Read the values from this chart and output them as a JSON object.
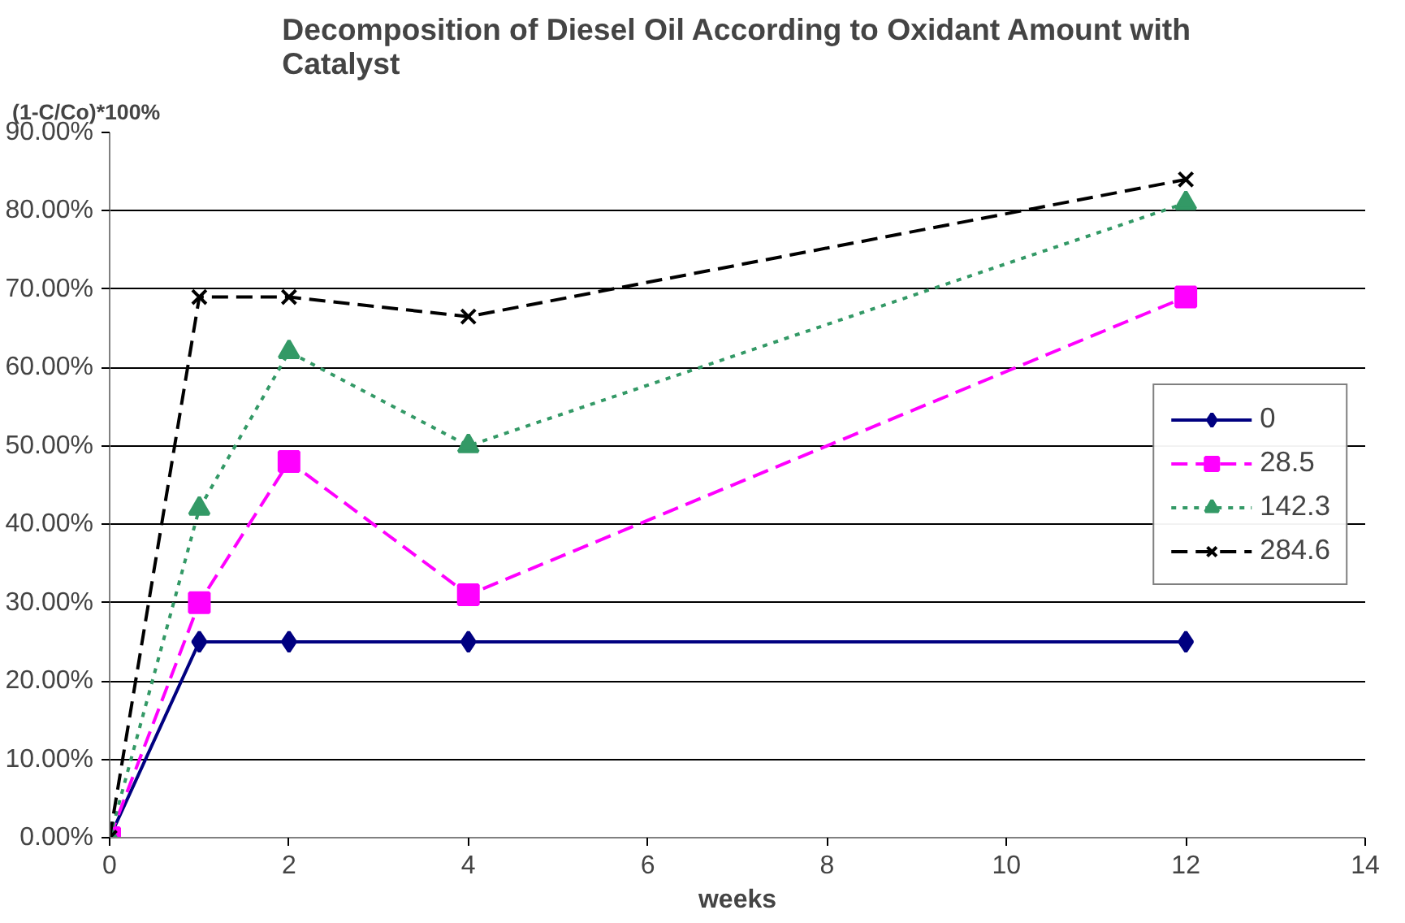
{
  "chart_data": {
    "type": "line",
    "title": "Decomposition of Diesel Oil According to Oxidant Amount with Catalyst",
    "xlabel": "weeks",
    "ylabel": "(1-C/Co)*100%",
    "x": [
      0,
      1,
      2,
      4,
      12
    ],
    "series": [
      {
        "name": "0",
        "color": "#000080",
        "values": [
          0,
          25,
          25,
          25,
          25
        ],
        "marker": "diamond",
        "line_style": "solid"
      },
      {
        "name": "28.5",
        "color": "#ff00ff",
        "values": [
          0,
          30,
          48,
          31,
          69
        ],
        "marker": "square",
        "line_style": "dashed"
      },
      {
        "name": "142.3",
        "color": "#339966",
        "values": [
          0,
          42,
          62,
          50,
          81
        ],
        "marker": "triangle",
        "line_style": "dotted"
      },
      {
        "name": "284.6",
        "color": "#000000",
        "values": [
          0,
          69,
          69,
          66.5,
          84
        ],
        "marker": "cross",
        "line_style": "dashed"
      }
    ],
    "xlim": [
      0,
      14
    ],
    "xticks": [
      0,
      2,
      4,
      6,
      8,
      10,
      12,
      14
    ],
    "ylim": [
      0,
      90
    ],
    "yticks": [
      {
        "value": 0,
        "label": "0.00%"
      },
      {
        "value": 10,
        "label": "10.00%"
      },
      {
        "value": 20,
        "label": "20.00%"
      },
      {
        "value": 30,
        "label": "30.00%"
      },
      {
        "value": 40,
        "label": "40.00%"
      },
      {
        "value": 50,
        "label": "50.00%"
      },
      {
        "value": 60,
        "label": "60.00%"
      },
      {
        "value": 70,
        "label": "70.00%"
      },
      {
        "value": 80,
        "label": "80.00%"
      },
      {
        "value": 90,
        "label": "90.00%"
      }
    ],
    "grid": "y",
    "legend": "right"
  }
}
